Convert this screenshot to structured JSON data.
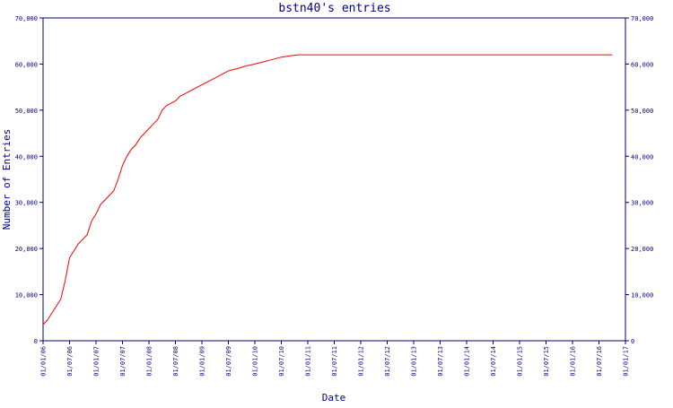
{
  "chart_data": {
    "type": "line",
    "title": "bstn40's entries",
    "xlabel": "Date",
    "ylabel": "Number of Entries",
    "ylim": [
      0,
      70000
    ],
    "y_ticks": [
      0,
      10000,
      20000,
      30000,
      40000,
      50000,
      60000,
      70000
    ],
    "y_tick_labels": [
      "0",
      "10,000",
      "20,000",
      "30,000",
      "40,000",
      "50,000",
      "60,000",
      "70,000"
    ],
    "x_tick_labels": [
      "01/01/06",
      "01/07/06",
      "01/01/07",
      "01/07/07",
      "01/01/08",
      "01/07/08",
      "01/01/09",
      "01/07/09",
      "01/01/10",
      "01/07/10",
      "01/01/11",
      "01/07/11",
      "01/01/12",
      "01/07/12",
      "01/01/13",
      "01/07/13",
      "01/01/14",
      "01/07/14",
      "01/01/15",
      "01/07/15",
      "01/01/16",
      "01/07/16",
      "01/01/17"
    ],
    "grid": false,
    "right_axis_mirrors_left": true,
    "colors": {
      "line": "#ff0000",
      "axis": "#000080",
      "text": "#000080"
    },
    "series": [
      {
        "x": [
          "2006-01-01",
          "2006-02-01",
          "2006-03-01",
          "2006-04-01",
          "2006-05-01",
          "2006-06-01",
          "2006-07-01",
          "2006-08-01",
          "2006-09-01",
          "2006-10-01",
          "2006-11-01",
          "2006-12-01",
          "2007-01-01",
          "2007-02-01",
          "2007-03-01",
          "2007-04-01",
          "2007-05-01",
          "2007-06-01",
          "2007-07-01",
          "2007-08-01",
          "2007-09-01",
          "2007-10-01",
          "2007-11-01",
          "2007-12-01",
          "2008-01-01",
          "2008-02-01",
          "2008-03-01",
          "2008-04-01",
          "2008-05-01",
          "2008-06-01",
          "2008-07-01",
          "2008-08-01",
          "2008-09-01",
          "2008-10-01",
          "2008-11-01",
          "2008-12-01",
          "2009-01-01",
          "2009-02-01",
          "2009-03-01",
          "2009-04-01",
          "2009-05-01",
          "2009-06-01",
          "2009-07-01",
          "2009-08-01",
          "2009-09-01",
          "2009-10-01",
          "2009-11-01",
          "2009-12-01",
          "2010-01-01",
          "2010-03-01",
          "2010-05-01",
          "2010-07-01",
          "2010-09-01",
          "2010-11-01",
          "2011-01-01",
          "2011-03-01",
          "2011-05-01",
          "2011-07-01",
          "2011-09-01",
          "2011-11-01",
          "2011-12-01",
          "2012-01-01",
          "2012-02-01",
          "2012-03-01",
          "2012-06-01",
          "2013-01-01",
          "2014-01-01",
          "2015-01-01",
          "2016-01-01",
          "2016-10-01"
        ],
        "y": [
          3500,
          4500,
          6000,
          7500,
          9000,
          13000,
          18000,
          19500,
          21000,
          22000,
          23000,
          26000,
          27500,
          29500,
          30500,
          31500,
          32500,
          35000,
          38000,
          40000,
          41500,
          42500,
          44000,
          45000,
          46000,
          47000,
          48000,
          50000,
          51000,
          51500,
          52000,
          53000,
          53500,
          54000,
          54500,
          55000,
          55500,
          56000,
          56500,
          57000,
          57500,
          58000,
          58500,
          58800,
          59000,
          59300,
          59600,
          59800,
          60000,
          60500,
          61000,
          61500,
          61800,
          62000,
          62000,
          62000,
          62000,
          62000,
          62000,
          62000,
          62000,
          62000,
          62000,
          62000,
          62000,
          62000,
          62000,
          62000,
          62000,
          62000
        ]
      }
    ]
  }
}
